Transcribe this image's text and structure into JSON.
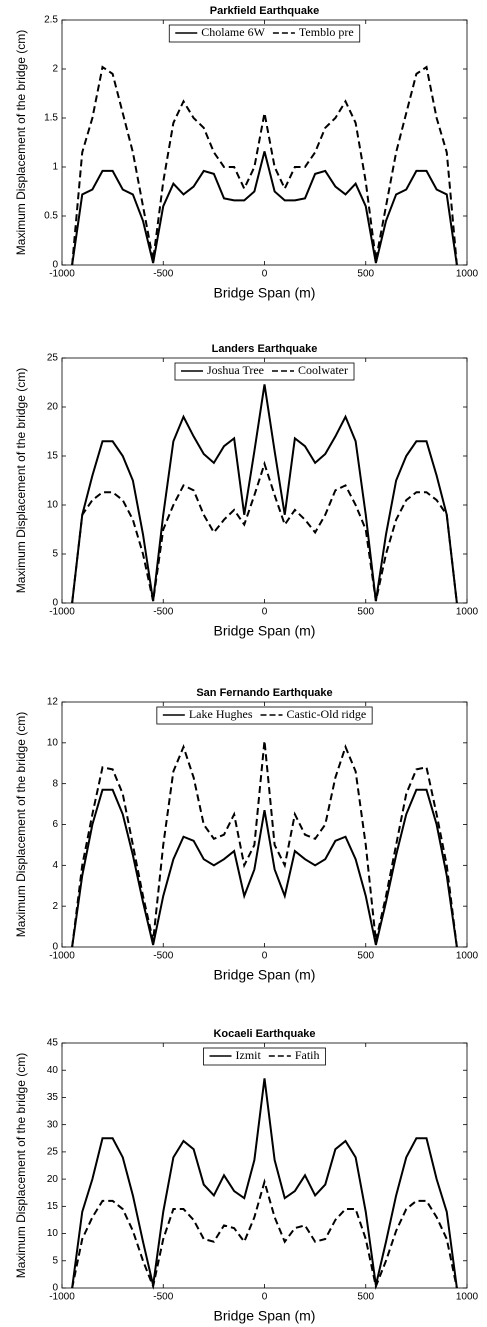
{
  "chart_data": [
    {
      "type": "line",
      "title": "Parkfield Earthquake",
      "x_label": "Bridge Span (m)",
      "y_label": "Maximum Displacement of the bridge (cm)",
      "x": [
        -950,
        -900,
        -850,
        -800,
        -750,
        -700,
        -650,
        -600,
        -550,
        -500,
        -450,
        -400,
        -350,
        -300,
        -250,
        -200,
        -150,
        -100,
        -50,
        0,
        50,
        100,
        150,
        200,
        250,
        300,
        350,
        400,
        450,
        500,
        550,
        600,
        650,
        700,
        750,
        800,
        850,
        900,
        950
      ],
      "series": [
        {
          "name": "Cholame 6W",
          "color": "#000000",
          "linestyle": "solid",
          "values": [
            0,
            0.72,
            0.77,
            0.96,
            0.96,
            0.77,
            0.72,
            0.45,
            0.02,
            0.6,
            0.83,
            0.72,
            0.8,
            0.96,
            0.93,
            0.68,
            0.66,
            0.66,
            0.75,
            1.16,
            0.75,
            0.66,
            0.66,
            0.68,
            0.93,
            0.96,
            0.8,
            0.72,
            0.83,
            0.6,
            0.02,
            0.45,
            0.72,
            0.77,
            0.96,
            0.96,
            0.77,
            0.72,
            0
          ]
        },
        {
          "name": "Temblo pre",
          "color": "#000000",
          "linestyle": "dashed",
          "values": [
            0,
            1.15,
            1.5,
            2.02,
            1.95,
            1.55,
            1.15,
            0.6,
            0.05,
            0.85,
            1.45,
            1.67,
            1.5,
            1.4,
            1.15,
            1.0,
            1.0,
            0.78,
            1.0,
            1.55,
            1.0,
            0.78,
            1.0,
            1.0,
            1.15,
            1.4,
            1.5,
            1.67,
            1.45,
            0.85,
            0.05,
            0.6,
            1.15,
            1.55,
            1.95,
            2.02,
            1.5,
            1.15,
            0
          ]
        }
      ],
      "xlim": [
        -1000,
        1000
      ],
      "ylim": [
        0,
        2.5
      ],
      "xticks": [
        -1000,
        -500,
        0,
        500,
        1000
      ],
      "yticks": [
        0,
        0.5,
        1,
        1.5,
        2,
        2.5
      ],
      "grid": false,
      "legend": "upper center"
    },
    {
      "type": "line",
      "title": "Landers Earthquake",
      "x_label": "Bridge Span (m)",
      "y_label": "Maximum Displacement of the bridge (cm)",
      "x": [
        -950,
        -900,
        -850,
        -800,
        -750,
        -700,
        -650,
        -600,
        -550,
        -500,
        -450,
        -400,
        -350,
        -300,
        -250,
        -200,
        -150,
        -100,
        -50,
        0,
        50,
        100,
        150,
        200,
        250,
        300,
        350,
        400,
        450,
        500,
        550,
        600,
        650,
        700,
        750,
        800,
        850,
        900,
        950
      ],
      "series": [
        {
          "name": "Joshua Tree",
          "color": "#000000",
          "linestyle": "solid",
          "values": [
            0,
            9,
            13,
            16.5,
            16.5,
            15,
            12.5,
            7,
            0.2,
            9,
            16.5,
            19,
            17,
            15.2,
            14.3,
            16,
            16.8,
            9,
            15.5,
            22.3,
            15.5,
            9,
            16.8,
            16,
            14.3,
            15.2,
            17,
            19,
            16.5,
            9,
            0.2,
            7,
            12.5,
            15,
            16.5,
            16.5,
            13,
            9,
            0
          ]
        },
        {
          "name": "Coolwater",
          "color": "#000000",
          "linestyle": "dashed",
          "values": [
            0,
            9,
            10.5,
            11.3,
            11.3,
            10.5,
            8.5,
            5,
            0.2,
            7.5,
            10,
            12,
            11.5,
            9,
            7.2,
            8.5,
            9.5,
            8,
            11,
            14.2,
            11,
            8,
            9.5,
            8.5,
            7.2,
            9,
            11.5,
            12,
            10,
            7.5,
            0.2,
            5,
            8.5,
            10.5,
            11.3,
            11.3,
            10.5,
            9,
            0
          ]
        }
      ],
      "xlim": [
        -1000,
        1000
      ],
      "ylim": [
        0,
        25
      ],
      "xticks": [
        -1000,
        -500,
        0,
        500,
        1000
      ],
      "yticks": [
        0,
        5,
        10,
        15,
        20,
        25
      ],
      "grid": false,
      "legend": "upper center"
    },
    {
      "type": "line",
      "title": "San Fernando Earthquake",
      "x_label": "Bridge Span (m)",
      "y_label": "Maximum Displacement of the bridge (cm)",
      "x": [
        -950,
        -900,
        -850,
        -800,
        -750,
        -700,
        -650,
        -600,
        -550,
        -500,
        -450,
        -400,
        -350,
        -300,
        -250,
        -200,
        -150,
        -100,
        -50,
        0,
        50,
        100,
        150,
        200,
        250,
        300,
        350,
        400,
        450,
        500,
        550,
        600,
        650,
        700,
        750,
        800,
        850,
        900,
        950
      ],
      "series": [
        {
          "name": "Lake Hughes",
          "color": "#000000",
          "linestyle": "solid",
          "values": [
            0,
            3.5,
            6,
            7.7,
            7.7,
            6.5,
            4.5,
            2.2,
            0.1,
            2.5,
            4.3,
            5.4,
            5.2,
            4.3,
            4,
            4.3,
            4.7,
            2.5,
            3.8,
            6.7,
            3.8,
            2.5,
            4.7,
            4.3,
            4,
            4.3,
            5.2,
            5.4,
            4.3,
            2.5,
            0.1,
            2.2,
            4.5,
            6.5,
            7.7,
            7.7,
            6,
            3.5,
            0
          ]
        },
        {
          "name": "Castic-Old ridge",
          "color": "#000000",
          "linestyle": "dashed",
          "values": [
            0,
            4,
            6.5,
            8.8,
            8.7,
            7.5,
            5,
            2.5,
            0.3,
            5,
            8.6,
            9.8,
            8.3,
            6,
            5.3,
            5.5,
            6.5,
            4,
            5,
            10.1,
            5,
            4,
            6.5,
            5.5,
            5.3,
            6,
            8.3,
            9.8,
            8.6,
            5,
            0.3,
            2.5,
            5,
            7.5,
            8.7,
            8.8,
            6.5,
            4,
            0
          ]
        }
      ],
      "xlim": [
        -1000,
        1000
      ],
      "ylim": [
        0,
        12
      ],
      "xticks": [
        -1000,
        -500,
        0,
        500,
        1000
      ],
      "yticks": [
        0,
        2,
        4,
        6,
        8,
        10,
        12
      ],
      "grid": false,
      "legend": "upper center"
    },
    {
      "type": "line",
      "title": "Kocaeli Earthquake",
      "x_label": "Bridge Span (m)",
      "y_label": "Maximum Displacement of the bridge (cm)",
      "x": [
        -950,
        -900,
        -850,
        -800,
        -750,
        -700,
        -650,
        -600,
        -550,
        -500,
        -450,
        -400,
        -350,
        -300,
        -250,
        -200,
        -150,
        -100,
        -50,
        0,
        50,
        100,
        150,
        200,
        250,
        300,
        350,
        400,
        450,
        500,
        550,
        600,
        650,
        700,
        750,
        800,
        850,
        900,
        950
      ],
      "series": [
        {
          "name": "Izmit",
          "color": "#000000",
          "linestyle": "solid",
          "values": [
            0,
            14,
            20,
            27.5,
            27.5,
            24,
            17,
            8.5,
            0.5,
            14,
            24,
            27,
            25.5,
            19,
            17,
            20.7,
            17.8,
            16.5,
            23.5,
            38.5,
            23.5,
            16.5,
            17.8,
            20.7,
            17,
            19,
            25.5,
            27,
            24,
            14,
            0.5,
            8.5,
            17,
            24,
            27.5,
            27.5,
            20,
            14,
            0
          ]
        },
        {
          "name": "Fatih",
          "color": "#000000",
          "linestyle": "dashed",
          "values": [
            0,
            9,
            13,
            16,
            16,
            14.5,
            10.5,
            5,
            0.3,
            9,
            14.5,
            14.5,
            12.5,
            9,
            8.5,
            11.5,
            11,
            8.5,
            13,
            19.5,
            13,
            8.5,
            11,
            11.5,
            8.5,
            9,
            12.5,
            14.5,
            14.5,
            9,
            0.3,
            5,
            10.5,
            14.5,
            16,
            16,
            13,
            9,
            0
          ]
        }
      ],
      "xlim": [
        -1000,
        1000
      ],
      "ylim": [
        0,
        45
      ],
      "xticks": [
        -1000,
        -500,
        0,
        500,
        1000
      ],
      "yticks": [
        0,
        5,
        10,
        15,
        20,
        25,
        30,
        35,
        40,
        45
      ],
      "grid": false,
      "legend": "upper center"
    }
  ]
}
